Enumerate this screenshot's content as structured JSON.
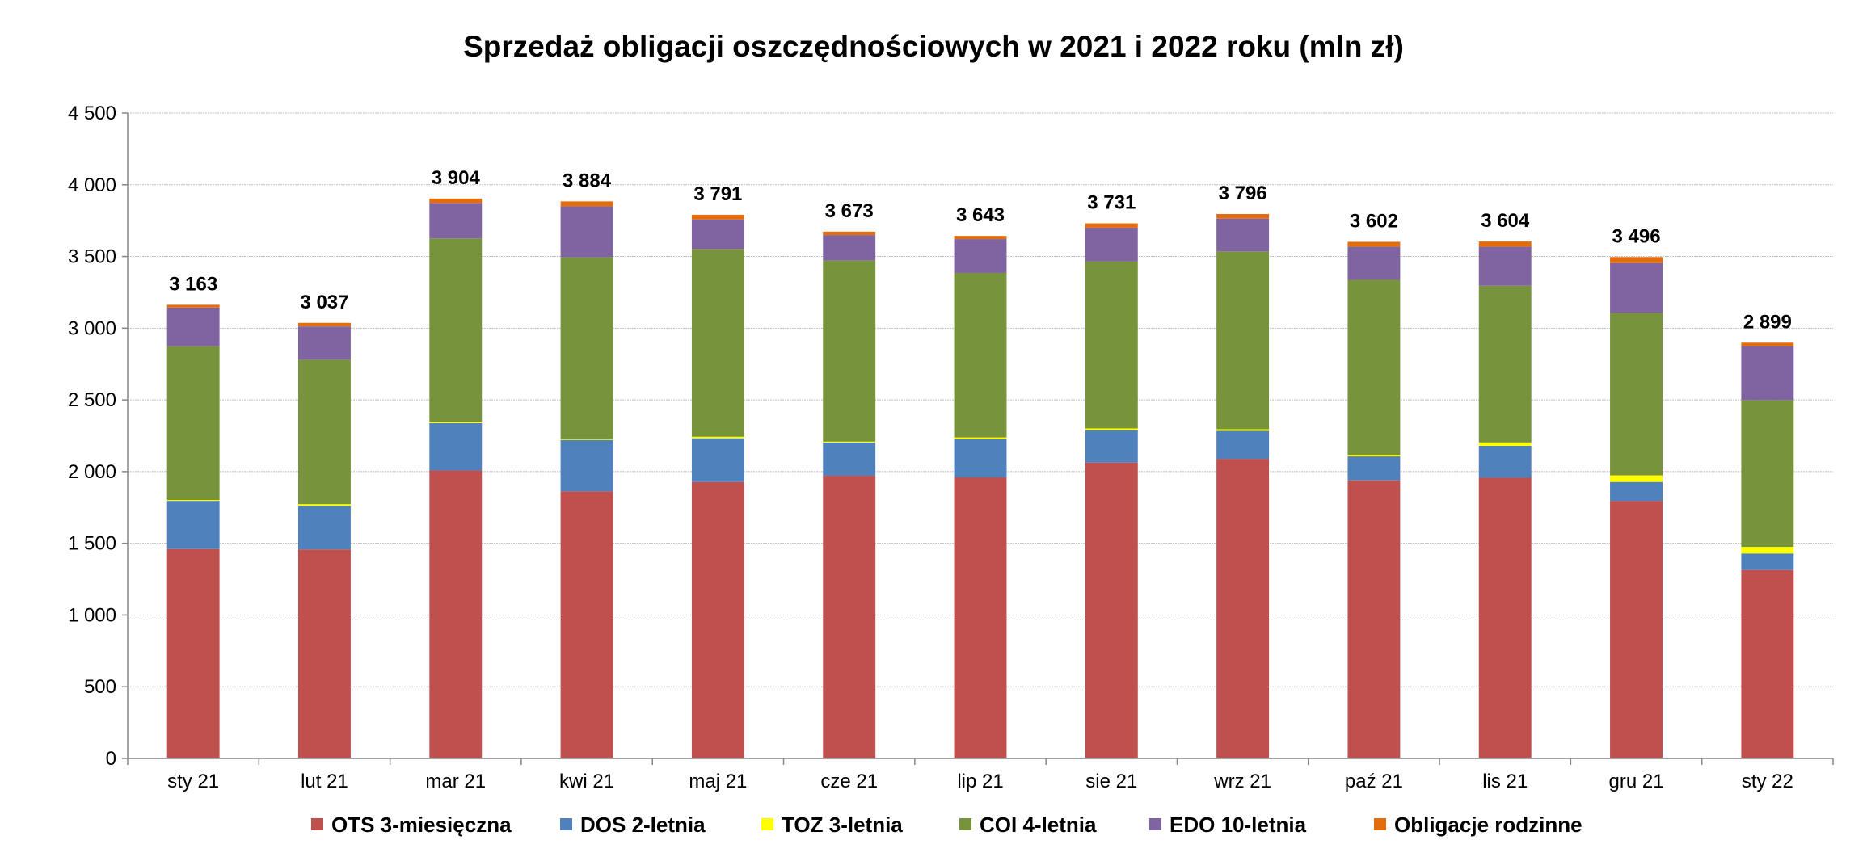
{
  "chart_data": {
    "type": "bar",
    "stacked": true,
    "title": "Sprzedaż obligacji oszczędnościowych w 2021 i 2022 roku (mln zł)",
    "xlabel": "",
    "ylabel": "",
    "ylim": [
      0,
      4500
    ],
    "yticks": [
      0,
      500,
      1000,
      1500,
      2000,
      2500,
      3000,
      3500,
      4000,
      4500
    ],
    "ytick_labels": [
      "0",
      "500",
      "1 000",
      "1 500",
      "2 000",
      "2 500",
      "3 000",
      "3 500",
      "4 000",
      "4 500"
    ],
    "grid": true,
    "legend_position": "bottom",
    "categories": [
      "sty 21",
      "lut 21",
      "mar 21",
      "kwi 21",
      "maj 21",
      "cze 21",
      "lip 21",
      "sie 21",
      "wrz 21",
      "paź 21",
      "lis 21",
      "gru 21",
      "sty 22"
    ],
    "series": [
      {
        "name": "OTS 3-miesięczna",
        "color": "#C0504D",
        "values": [
          1460,
          1457,
          2008,
          1862,
          1928,
          1971,
          1960,
          2063,
          2089,
          1939,
          1957,
          1796,
          1314
        ]
      },
      {
        "name": "DOS 2-letnia",
        "color": "#4F81BD",
        "values": [
          336,
          304,
          330,
          359,
          304,
          232,
          266,
          226,
          195,
          167,
          223,
          132,
          115
        ]
      },
      {
        "name": "TOZ 3-letnia",
        "color": "#FFFF00",
        "values": [
          6,
          12,
          9,
          5,
          11,
          6,
          12,
          12,
          11,
          11,
          23,
          46,
          46
        ]
      },
      {
        "name": "COI 4-letnia",
        "color": "#77933C",
        "values": [
          1072,
          1007,
          1279,
          1268,
          1309,
          1262,
          1147,
          1165,
          1240,
          1220,
          1093,
          1133,
          1024
        ]
      },
      {
        "name": "EDO 10-letnia",
        "color": "#8064A2",
        "values": [
          270,
          232,
          247,
          356,
          206,
          178,
          236,
          235,
          229,
          232,
          273,
          347,
          376
        ]
      },
      {
        "name": "Obligacje rodzinne",
        "color": "#E46C0A",
        "values": [
          19,
          25,
          31,
          34,
          33,
          24,
          22,
          30,
          32,
          33,
          35,
          42,
          24
        ]
      }
    ],
    "totals": [
      3163,
      3037,
      3904,
      3884,
      3791,
      3673,
      3643,
      3731,
      3796,
      3602,
      3604,
      3496,
      2899
    ],
    "total_labels": [
      "3 163",
      "3 037",
      "3 904",
      "3 884",
      "3 791",
      "3 673",
      "3 643",
      "3 731",
      "3 796",
      "3 602",
      "3 604",
      "3 496",
      "2 899"
    ]
  }
}
